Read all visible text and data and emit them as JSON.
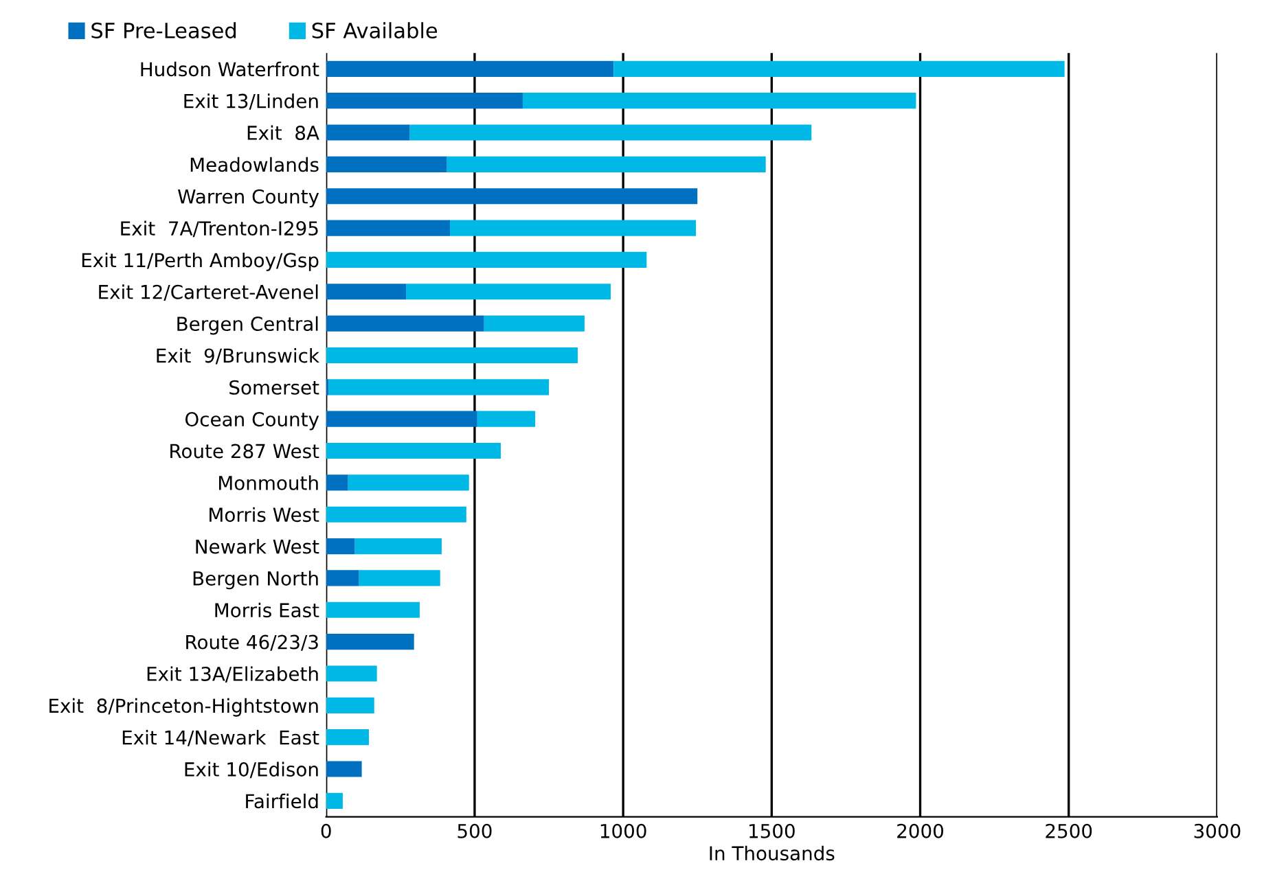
{
  "chart_data": {
    "type": "bar",
    "orientation": "horizontal",
    "stacked": true,
    "xlabel": "In Thousands",
    "categories": [
      "Hudson Waterfront",
      "Exit 13/Linden",
      "Exit  8A",
      "Meadowlands",
      "Warren County",
      "Exit  7A/Trenton-I295",
      "Exit 11/Perth Amboy/Gsp",
      "Exit 12/Carteret-Avenel",
      "Bergen Central",
      "Exit  9/Brunswick",
      "Somerset",
      "Ocean County",
      "Route 287 West",
      "Monmouth",
      "Morris West",
      "Newark West",
      "Bergen North",
      "Morris East",
      "Route 46/23/3",
      "Exit 13A/Elizabeth",
      "Exit  8/Princeton-Hightstown",
      "Exit 14/Newark  East",
      "Exit 10/Edison",
      "Fairfield"
    ],
    "series": [
      {
        "name": "SF Pre-Leased",
        "color": "#0070c0",
        "values": [
          968,
          662,
          282,
          407,
          1250,
          417,
          0,
          269,
          532,
          0,
          9,
          509,
          0,
          74,
          0,
          97,
          111,
          0,
          296,
          0,
          0,
          0,
          120,
          0
        ]
      },
      {
        "name": "SF Available",
        "color": "#00b8e6",
        "values": [
          1518,
          1324,
          1352,
          1073,
          0,
          828,
          1079,
          689,
          338,
          847,
          741,
          195,
          588,
          407,
          472,
          292,
          273,
          315,
          0,
          171,
          162,
          144,
          0,
          56
        ]
      }
    ],
    "xlim": [
      0,
      3000
    ],
    "xticks": [
      0,
      500,
      1000,
      1500,
      2000,
      2500,
      3000
    ],
    "grid": "x",
    "legend": "top left"
  }
}
